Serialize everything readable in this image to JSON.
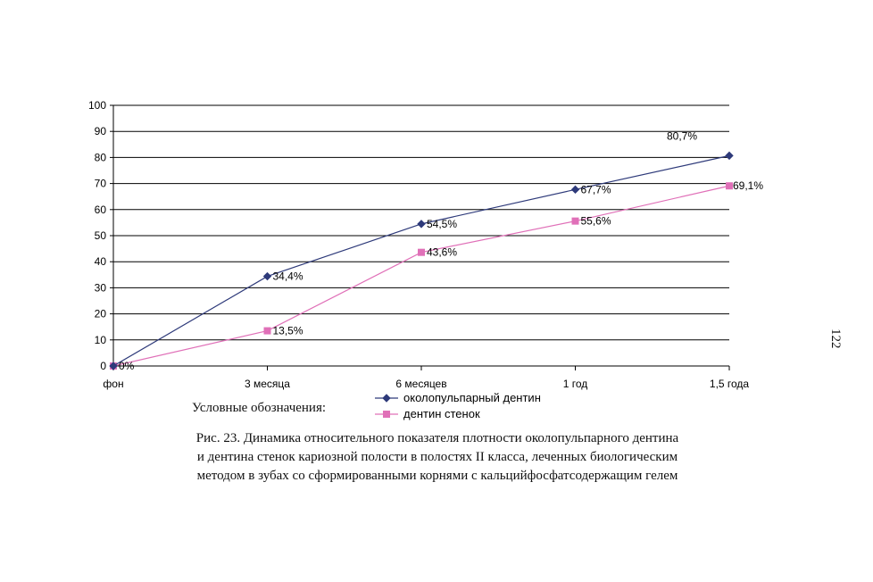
{
  "chart_data": {
    "type": "line",
    "categories": [
      "фон",
      "3 месяца",
      "6 месяцев",
      "1 год",
      "1,5 года"
    ],
    "ylim": [
      0,
      100
    ],
    "yticks": [
      0,
      10,
      20,
      30,
      40,
      50,
      60,
      70,
      80,
      90,
      100
    ],
    "grid": true,
    "series": [
      {
        "name": "околопульпарный дентин",
        "values": [
          0,
          34.4,
          54.5,
          67.7,
          80.7
        ],
        "data_labels": [
          "",
          "34,4%",
          "54,5%",
          "67,7%",
          "80,7%"
        ],
        "color": "#2e3a7a",
        "marker": "diamond"
      },
      {
        "name": "дентин стенок",
        "values": [
          0,
          13.5,
          43.6,
          55.6,
          69.1
        ],
        "data_labels": [
          "0%",
          "13,5%",
          "43,6%",
          "55,6%",
          "69,1%"
        ],
        "color": "#e070b8",
        "marker": "square"
      }
    ],
    "legend_placement": "bottom-center"
  },
  "legend_title": "Условные обозначения:",
  "caption_lines": [
    "Рис. 23.  Динамика относительного показателя плотности околопульпарного дентина",
    "и дентина стенок кариозной полости в полостях II класса, леченных биологическим",
    "методом в зубах со сформированными корнями с кальцийфосфатсодержащим гелем"
  ],
  "page_number": "122"
}
